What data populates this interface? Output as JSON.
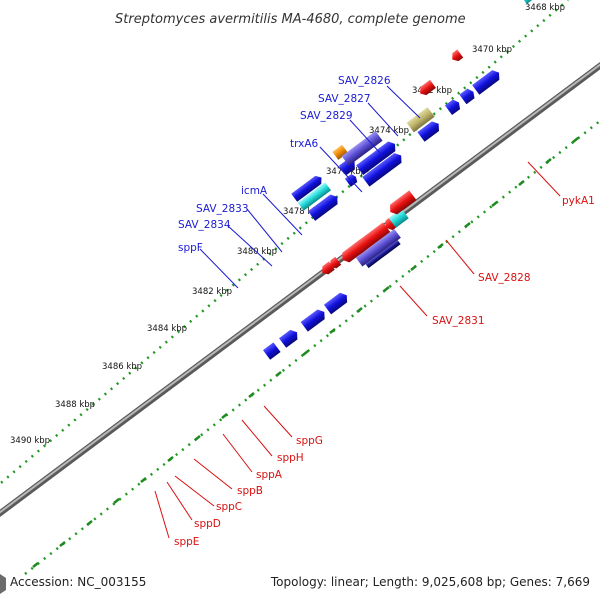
{
  "title": "Streptomyces avermitilis MA-4680, complete genome",
  "footer": {
    "accession": "Accession: NC_003155",
    "summary": "Topology: linear; Length: 9,025,608 bp; Genes: 7,669"
  },
  "colors": {
    "forward_gene": "#1010dd",
    "reverse_gene": "#e81010",
    "rna_cyan": "#22d8d8",
    "rna_indigo": "#5a4fd4",
    "pseudo_olive": "#bdb36a",
    "orange": "#ee8800",
    "backbone": "#8a8a8a",
    "ruler_dots": "#229922",
    "blue_label": "#1a1ad4",
    "red_label": "#d81010"
  },
  "ticks": [
    "3468 kbp",
    "3470 kbp",
    "3472 kbp",
    "3474 kbp",
    "3476 kbp",
    "3478 kbp",
    "3480 kbp",
    "3482 kbp",
    "3484 kbp",
    "3486 kbp",
    "3488 kbp",
    "3490 kbp"
  ],
  "genes_top": [
    "SAV_2826",
    "SAV_2827",
    "SAV_2829",
    "trxA6",
    "icmA",
    "SAV_2833",
    "SAV_2834",
    "sppF"
  ],
  "genes_right": [
    "pykA1",
    "SAV_2828",
    "SAV_2831"
  ],
  "genes_bottom": [
    "sppG",
    "sppH",
    "sppA",
    "sppB",
    "sppC",
    "sppD",
    "sppE"
  ]
}
